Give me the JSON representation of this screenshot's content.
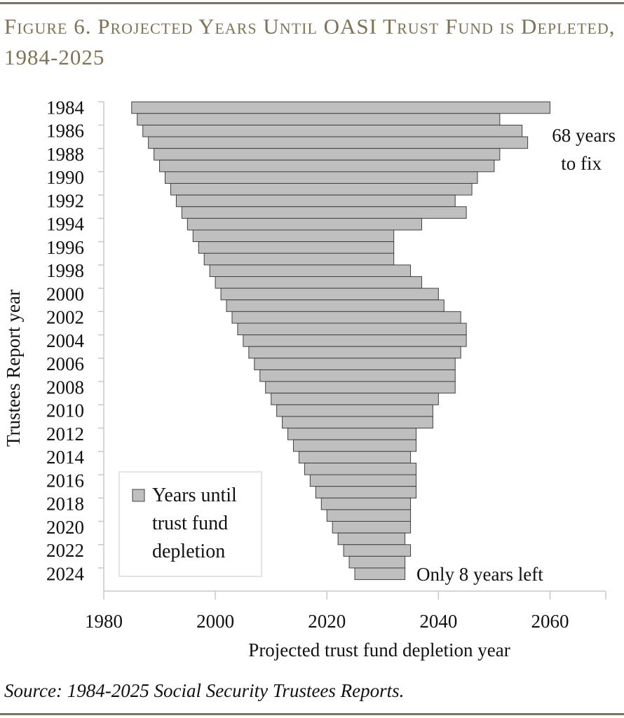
{
  "title": "Figure 6. Projected Years Until OASI Trust Fund is Depleted, 1984-2025",
  "source": "Source: 1984-2025 Social Security Trustees Reports.",
  "colors": {
    "accent": "#807254",
    "bar_fill": "#bfbfbf",
    "bar_stroke": "#404040"
  },
  "chart_data": {
    "type": "bar",
    "orientation": "horizontal",
    "xlabel": "Projected trust fund depletion year",
    "ylabel": "Trustees Report year",
    "xlim": [
      1980,
      2070
    ],
    "xticks": [
      "1980",
      "2000",
      "2020",
      "2040",
      "2060"
    ],
    "yticks": [
      "1984",
      "1986",
      "1988",
      "1990",
      "1992",
      "1994",
      "1996",
      "1998",
      "2000",
      "2002",
      "2004",
      "2006",
      "2008",
      "2010",
      "2012",
      "2014",
      "2016",
      "2018",
      "2020",
      "2022",
      "2024"
    ],
    "categories": [
      1984,
      1985,
      1986,
      1987,
      1988,
      1989,
      1990,
      1991,
      1992,
      1993,
      1994,
      1995,
      1996,
      1997,
      1998,
      1999,
      2000,
      2001,
      2002,
      2003,
      2004,
      2005,
      2006,
      2007,
      2008,
      2009,
      2010,
      2011,
      2012,
      2013,
      2014,
      2015,
      2016,
      2017,
      2018,
      2019,
      2020,
      2021,
      2022,
      2023,
      2024
    ],
    "series": [
      {
        "name": "Years until trust fund depletion",
        "start": [
          1985,
          1986,
          1987,
          1988,
          1989,
          1990,
          1991,
          1992,
          1993,
          1994,
          1995,
          1996,
          1997,
          1998,
          1999,
          2000,
          2001,
          2002,
          2003,
          2004,
          2005,
          2006,
          2007,
          2008,
          2009,
          2010,
          2011,
          2012,
          2013,
          2014,
          2015,
          2016,
          2017,
          2018,
          2019,
          2020,
          2021,
          2022,
          2023,
          2024,
          2025
        ],
        "end": [
          2060,
          2051,
          2055,
          2056,
          2051,
          2050,
          2047,
          2046,
          2043,
          2045,
          2037,
          2032,
          2032,
          2032,
          2035,
          2037,
          2040,
          2041,
          2044,
          2045,
          2045,
          2044,
          2043,
          2043,
          2043,
          2040,
          2039,
          2039,
          2036,
          2036,
          2035,
          2036,
          2036,
          2036,
          2035,
          2035,
          2035,
          2034,
          2035,
          2034,
          2034
        ]
      }
    ],
    "legend": {
      "label": "Years until trust fund depletion",
      "lines": [
        "Years until",
        "trust fund",
        "depletion"
      ],
      "placement": "bottom-left"
    },
    "annotations": [
      {
        "lines": [
          "68 years",
          "to fix"
        ]
      },
      {
        "text": "Only 8 years left"
      }
    ],
    "grid": false
  }
}
